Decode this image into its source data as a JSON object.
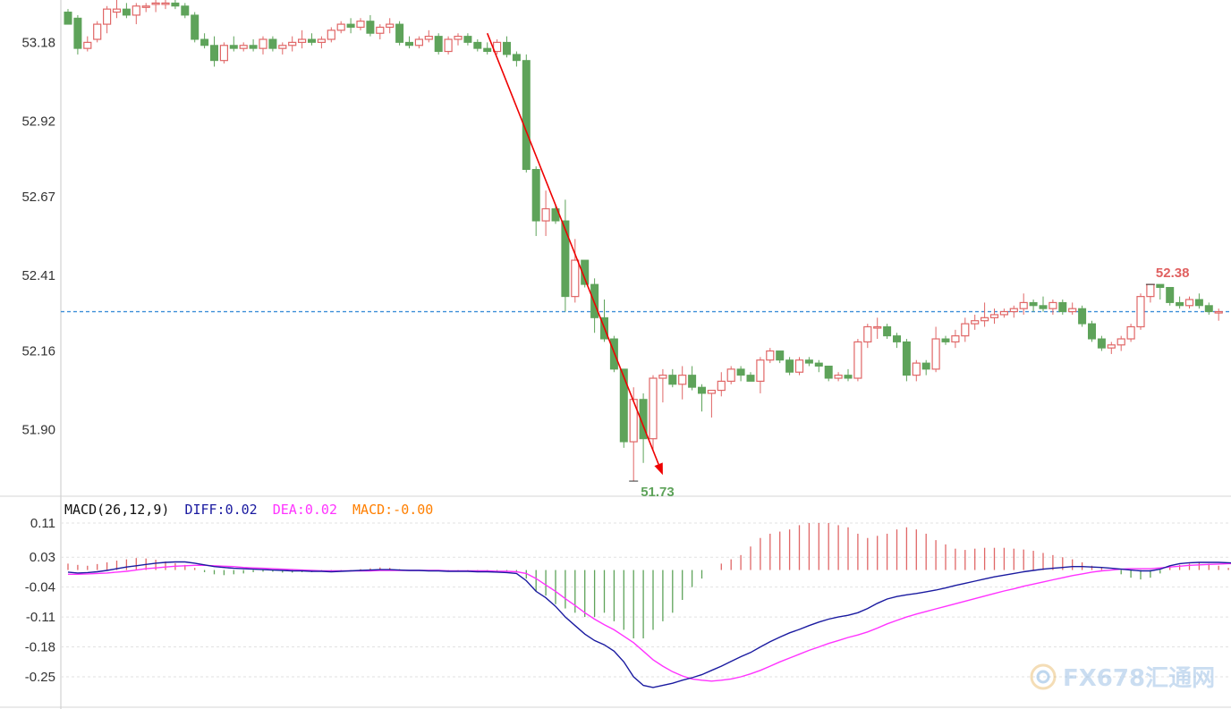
{
  "colors": {
    "up": "#e06666",
    "down": "#5ea35a",
    "diff": "#1a1aa0",
    "dea": "#ff33ff",
    "macd_label": "#ff7f00",
    "ref_line": "#3d8fd8",
    "arrow": "#ee0000",
    "high_label": "#e06060",
    "low_label": "#5ea35a"
  },
  "chart_data": [
    {
      "type": "candlestick",
      "yticks": [
        "53.18",
        "52.92",
        "52.67",
        "52.41",
        "52.16",
        "51.90"
      ],
      "ylim": [
        51.68,
        53.32
      ],
      "reference_line": 52.29,
      "annotations": {
        "high": "52.38",
        "low": "51.73"
      },
      "trend_arrow": {
        "from": [
          43,
          53.21
        ],
        "to": [
          61,
          51.75
        ]
      },
      "candles": [
        [
          53.28,
          53.29,
          53.24,
          53.24
        ],
        [
          53.26,
          53.27,
          53.14,
          53.16
        ],
        [
          53.16,
          53.2,
          53.15,
          53.18
        ],
        [
          53.19,
          53.25,
          53.18,
          53.24
        ],
        [
          53.24,
          53.3,
          53.21,
          53.29
        ],
        [
          53.28,
          53.32,
          53.26,
          53.29
        ],
        [
          53.29,
          53.31,
          53.26,
          53.27
        ],
        [
          53.27,
          53.31,
          53.24,
          53.3
        ],
        [
          53.3,
          53.31,
          53.28,
          53.3
        ],
        [
          53.31,
          53.32,
          53.28,
          53.31
        ],
        [
          53.31,
          53.32,
          53.29,
          53.31
        ],
        [
          53.31,
          53.32,
          53.29,
          53.3
        ],
        [
          53.3,
          53.31,
          53.26,
          53.27
        ],
        [
          53.27,
          53.28,
          53.18,
          53.19
        ],
        [
          53.19,
          53.21,
          53.16,
          53.17
        ],
        [
          53.17,
          53.2,
          53.1,
          53.12
        ],
        [
          53.12,
          53.18,
          53.11,
          53.17
        ],
        [
          53.17,
          53.2,
          53.15,
          53.16
        ],
        [
          53.16,
          53.18,
          53.15,
          53.17
        ],
        [
          53.17,
          53.19,
          53.15,
          53.16
        ],
        [
          53.16,
          53.2,
          53.14,
          53.19
        ],
        [
          53.19,
          53.2,
          53.15,
          53.16
        ],
        [
          53.16,
          53.18,
          53.14,
          53.17
        ],
        [
          53.17,
          53.2,
          53.15,
          53.18
        ],
        [
          53.18,
          53.22,
          53.16,
          53.19
        ],
        [
          53.19,
          53.21,
          53.17,
          53.18
        ],
        [
          53.18,
          53.2,
          53.16,
          53.19
        ],
        [
          53.19,
          53.23,
          53.18,
          53.22
        ],
        [
          53.22,
          53.25,
          53.21,
          53.24
        ],
        [
          53.24,
          53.26,
          53.21,
          53.23
        ],
        [
          53.23,
          53.26,
          53.22,
          53.25
        ],
        [
          53.25,
          53.27,
          53.2,
          53.21
        ],
        [
          53.21,
          53.24,
          53.19,
          53.23
        ],
        [
          53.23,
          53.26,
          53.21,
          53.24
        ],
        [
          53.24,
          53.25,
          53.17,
          53.18
        ],
        [
          53.18,
          53.2,
          53.16,
          53.17
        ],
        [
          53.17,
          53.2,
          53.16,
          53.19
        ],
        [
          53.19,
          53.22,
          53.18,
          53.2
        ],
        [
          53.2,
          53.21,
          53.14,
          53.15
        ],
        [
          53.15,
          53.2,
          53.14,
          53.19
        ],
        [
          53.19,
          53.21,
          53.17,
          53.2
        ],
        [
          53.2,
          53.21,
          53.17,
          53.18
        ],
        [
          53.18,
          53.19,
          53.15,
          53.16
        ],
        [
          53.16,
          53.18,
          53.14,
          53.15
        ],
        [
          53.15,
          53.19,
          53.14,
          53.18
        ],
        [
          53.18,
          53.2,
          53.13,
          53.14
        ],
        [
          53.14,
          53.15,
          53.1,
          53.12
        ],
        [
          53.12,
          53.14,
          52.75,
          52.76
        ],
        [
          52.76,
          52.77,
          52.54,
          52.59
        ],
        [
          52.59,
          52.69,
          52.54,
          52.63
        ],
        [
          52.63,
          52.64,
          52.58,
          52.59
        ],
        [
          52.59,
          52.66,
          52.29,
          52.34
        ],
        [
          52.34,
          52.53,
          52.32,
          52.46
        ],
        [
          52.46,
          52.46,
          52.37,
          52.38
        ],
        [
          52.38,
          52.4,
          52.22,
          52.27
        ],
        [
          52.27,
          52.33,
          52.19,
          52.2
        ],
        [
          52.2,
          52.21,
          52.09,
          52.1
        ],
        [
          52.1,
          52.1,
          51.84,
          51.86
        ],
        [
          51.86,
          52.04,
          51.73,
          52.0
        ],
        [
          52.0,
          52.02,
          51.79,
          51.87
        ],
        [
          51.87,
          52.08,
          51.83,
          52.07
        ],
        [
          52.07,
          52.1,
          51.99,
          52.08
        ],
        [
          52.08,
          52.1,
          52.04,
          52.05
        ],
        [
          52.05,
          52.11,
          52.0,
          52.08
        ],
        [
          52.08,
          52.11,
          52.03,
          52.04
        ],
        [
          52.04,
          52.05,
          51.96,
          52.02
        ],
        [
          52.02,
          52.03,
          51.94,
          52.03
        ],
        [
          52.03,
          52.09,
          52.01,
          52.06
        ],
        [
          52.06,
          52.11,
          52.05,
          52.1
        ],
        [
          52.1,
          52.11,
          52.06,
          52.08
        ],
        [
          52.08,
          52.09,
          52.06,
          52.06
        ],
        [
          52.06,
          52.14,
          52.02,
          52.13
        ],
        [
          52.13,
          52.17,
          52.12,
          52.16
        ],
        [
          52.16,
          52.16,
          52.12,
          52.13
        ],
        [
          52.13,
          52.14,
          52.08,
          52.09
        ],
        [
          52.09,
          52.14,
          52.08,
          52.13
        ],
        [
          52.13,
          52.14,
          52.11,
          52.12
        ],
        [
          52.12,
          52.13,
          52.09,
          52.11
        ],
        [
          52.11,
          52.11,
          52.06,
          52.07
        ],
        [
          52.07,
          52.09,
          52.06,
          52.08
        ],
        [
          52.08,
          52.1,
          52.06,
          52.07
        ],
        [
          52.07,
          52.2,
          52.06,
          52.19
        ],
        [
          52.19,
          52.25,
          52.17,
          52.24
        ],
        [
          52.24,
          52.27,
          52.2,
          52.24
        ],
        [
          52.24,
          52.25,
          52.2,
          52.21
        ],
        [
          52.21,
          52.22,
          52.17,
          52.19
        ],
        [
          52.19,
          52.2,
          52.06,
          52.08
        ],
        [
          52.08,
          52.13,
          52.06,
          52.12
        ],
        [
          52.12,
          52.13,
          52.08,
          52.1
        ],
        [
          52.1,
          52.24,
          52.09,
          52.2
        ],
        [
          52.2,
          52.21,
          52.18,
          52.19
        ],
        [
          52.19,
          52.23,
          52.17,
          52.21
        ],
        [
          52.21,
          52.27,
          52.19,
          52.25
        ],
        [
          52.25,
          52.28,
          52.23,
          52.26
        ],
        [
          52.26,
          52.32,
          52.24,
          52.27
        ],
        [
          52.27,
          52.3,
          52.25,
          52.28
        ],
        [
          52.28,
          52.3,
          52.27,
          52.29
        ],
        [
          52.29,
          52.31,
          52.27,
          52.3
        ],
        [
          52.3,
          52.35,
          52.28,
          52.32
        ],
        [
          52.32,
          52.33,
          52.29,
          52.31
        ],
        [
          52.31,
          52.34,
          52.29,
          52.3
        ],
        [
          52.3,
          52.33,
          52.28,
          52.32
        ],
        [
          52.32,
          52.33,
          52.28,
          52.29
        ],
        [
          52.29,
          52.32,
          52.28,
          52.3
        ],
        [
          52.3,
          52.31,
          52.24,
          52.25
        ],
        [
          52.25,
          52.26,
          52.19,
          52.2
        ],
        [
          52.2,
          52.21,
          52.16,
          52.17
        ],
        [
          52.17,
          52.19,
          52.15,
          52.18
        ],
        [
          52.18,
          52.21,
          52.16,
          52.2
        ],
        [
          52.2,
          52.25,
          52.19,
          52.24
        ],
        [
          52.24,
          52.35,
          52.23,
          52.34
        ],
        [
          52.34,
          52.38,
          52.32,
          52.38
        ],
        [
          52.38,
          52.38,
          52.33,
          52.37
        ],
        [
          52.37,
          52.37,
          52.31,
          52.32
        ],
        [
          52.32,
          52.34,
          52.3,
          52.31
        ],
        [
          52.31,
          52.34,
          52.3,
          52.33
        ],
        [
          52.33,
          52.35,
          52.3,
          52.31
        ],
        [
          52.31,
          52.32,
          52.28,
          52.29
        ],
        [
          52.29,
          52.3,
          52.26,
          52.29
        ]
      ]
    },
    {
      "type": "macd",
      "legend": {
        "name": "MACD(26,12,9)",
        "diff": "DIFF:0.02",
        "dea": "DEA:0.02",
        "macd": "MACD:-0.00"
      },
      "yticks": [
        "0.11",
        "0.03",
        "-0.04",
        "-0.11",
        "-0.18",
        "-0.25"
      ],
      "ylim": [
        -0.29,
        0.14
      ],
      "grid_levels": [
        0.11,
        0.03,
        -0.04,
        -0.11,
        -0.18,
        -0.25
      ],
      "diff": [
        -0.005,
        -0.007,
        -0.006,
        -0.004,
        -0.001,
        0.003,
        0.007,
        0.01,
        0.013,
        0.016,
        0.018,
        0.019,
        0.019,
        0.016,
        0.012,
        0.008,
        0.006,
        0.004,
        0.003,
        0.002,
        0.001,
        0.0,
        -0.001,
        -0.002,
        -0.002,
        -0.003,
        -0.003,
        -0.004,
        -0.003,
        -0.002,
        -0.001,
        0.0,
        0.001,
        0.001,
        0.0,
        -0.001,
        -0.001,
        -0.002,
        -0.002,
        -0.003,
        -0.003,
        -0.003,
        -0.004,
        -0.004,
        -0.005,
        -0.006,
        -0.008,
        -0.025,
        -0.05,
        -0.065,
        -0.085,
        -0.11,
        -0.13,
        -0.15,
        -0.165,
        -0.175,
        -0.19,
        -0.215,
        -0.25,
        -0.27,
        -0.275,
        -0.27,
        -0.265,
        -0.258,
        -0.252,
        -0.245,
        -0.235,
        -0.225,
        -0.214,
        -0.203,
        -0.193,
        -0.18,
        -0.168,
        -0.157,
        -0.147,
        -0.139,
        -0.13,
        -0.122,
        -0.115,
        -0.11,
        -0.106,
        -0.1,
        -0.09,
        -0.078,
        -0.068,
        -0.062,
        -0.058,
        -0.055,
        -0.051,
        -0.047,
        -0.042,
        -0.036,
        -0.031,
        -0.026,
        -0.021,
        -0.016,
        -0.012,
        -0.008,
        -0.004,
        -0.001,
        0.002,
        0.004,
        0.006,
        0.008,
        0.008,
        0.007,
        0.006,
        0.004,
        0.002,
        0.0,
        -0.002,
        -0.002,
        0.002,
        0.01,
        0.015,
        0.017,
        0.018,
        0.018,
        0.018,
        0.017,
        0.016
      ],
      "dea": [
        -0.01,
        -0.01,
        -0.009,
        -0.008,
        -0.007,
        -0.005,
        -0.003,
        0.0,
        0.003,
        0.005,
        0.007,
        0.009,
        0.01,
        0.011,
        0.011,
        0.01,
        0.009,
        0.008,
        0.006,
        0.005,
        0.004,
        0.003,
        0.002,
        0.001,
        0.0,
        -0.001,
        -0.002,
        -0.002,
        -0.002,
        -0.002,
        -0.002,
        -0.002,
        -0.001,
        -0.001,
        -0.001,
        -0.001,
        -0.001,
        -0.001,
        -0.001,
        -0.002,
        -0.002,
        -0.002,
        -0.002,
        -0.002,
        -0.003,
        -0.003,
        -0.004,
        -0.008,
        -0.02,
        -0.035,
        -0.05,
        -0.067,
        -0.083,
        -0.1,
        -0.115,
        -0.128,
        -0.14,
        -0.155,
        -0.17,
        -0.19,
        -0.21,
        -0.225,
        -0.238,
        -0.248,
        -0.255,
        -0.258,
        -0.26,
        -0.258,
        -0.255,
        -0.25,
        -0.243,
        -0.235,
        -0.225,
        -0.215,
        -0.206,
        -0.197,
        -0.188,
        -0.18,
        -0.172,
        -0.165,
        -0.158,
        -0.152,
        -0.145,
        -0.136,
        -0.126,
        -0.118,
        -0.11,
        -0.103,
        -0.097,
        -0.091,
        -0.085,
        -0.079,
        -0.073,
        -0.067,
        -0.061,
        -0.055,
        -0.049,
        -0.044,
        -0.038,
        -0.033,
        -0.028,
        -0.023,
        -0.018,
        -0.013,
        -0.009,
        -0.005,
        -0.002,
        0.0,
        0.002,
        0.003,
        0.003,
        0.003,
        0.005,
        0.007,
        0.009,
        0.011,
        0.012,
        0.013,
        0.014,
        0.015,
        0.015
      ],
      "histogram": [
        0.015,
        0.012,
        0.01,
        0.014,
        0.018,
        0.022,
        0.025,
        0.028,
        0.027,
        0.024,
        0.02,
        0.016,
        0.012,
        0.005,
        -0.005,
        -0.01,
        -0.012,
        -0.01,
        -0.008,
        -0.005,
        -0.004,
        -0.004,
        -0.006,
        -0.006,
        -0.005,
        -0.005,
        -0.004,
        -0.004,
        -0.003,
        -0.002,
        0.002,
        0.004,
        0.006,
        0.005,
        0.002,
        -0.001,
        -0.002,
        -0.001,
        0.0,
        -0.001,
        -0.001,
        -0.001,
        -0.002,
        -0.002,
        -0.002,
        -0.003,
        -0.004,
        -0.02,
        -0.05,
        -0.06,
        -0.08,
        -0.09,
        -0.1,
        -0.11,
        -0.11,
        -0.1,
        -0.12,
        -0.14,
        -0.16,
        -0.16,
        -0.14,
        -0.12,
        -0.1,
        -0.07,
        -0.04,
        -0.02,
        0.0,
        0.015,
        0.025,
        0.035,
        0.055,
        0.075,
        0.085,
        0.09,
        0.095,
        0.105,
        0.11,
        0.11,
        0.11,
        0.105,
        0.1,
        0.085,
        0.075,
        0.08,
        0.085,
        0.095,
        0.1,
        0.095,
        0.085,
        0.07,
        0.06,
        0.05,
        0.047,
        0.05,
        0.052,
        0.052,
        0.052,
        0.05,
        0.048,
        0.045,
        0.04,
        0.035,
        0.03,
        0.025,
        0.018,
        0.01,
        0.005,
        0.0,
        -0.01,
        -0.018,
        -0.022,
        -0.018,
        -0.008,
        0.008,
        0.012,
        0.015,
        0.018,
        0.015,
        0.01,
        0.005,
        0.003
      ]
    }
  ],
  "watermark": {
    "text": "FX678汇通网",
    "name": "fx678-logo-icon"
  }
}
